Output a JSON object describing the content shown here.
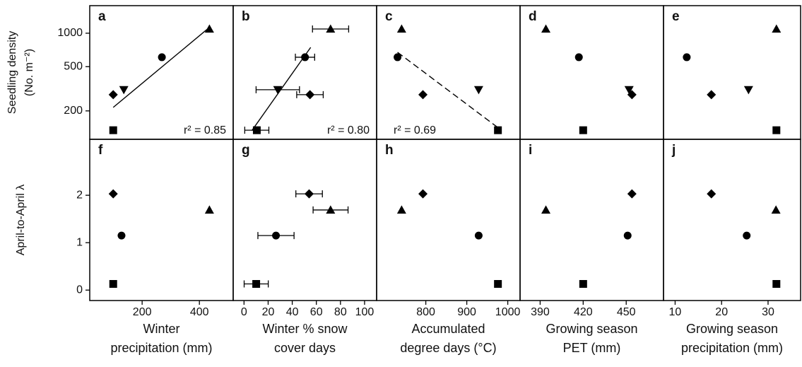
{
  "chart_data": [
    {
      "type": "scatter",
      "panel": "a",
      "yscale": "log",
      "ylim": [
        111,
        1770
      ],
      "yticks": [
        200,
        500,
        1000
      ],
      "ylabel": [
        "Seedling density",
        "(No. m⁻²)"
      ],
      "xlim": [
        17,
        518
      ],
      "points": {
        "marker": [
          "triangle-up",
          "circle",
          "triangle-down",
          "diamond",
          "square"
        ],
        "x": [
          435,
          269,
          136,
          99,
          99
        ],
        "y": [
          1092,
          608,
          310,
          280,
          134
        ]
      },
      "fit": {
        "style": "solid",
        "x": [
          99,
          430
        ],
        "y": [
          215,
          1100
        ]
      },
      "annotation": "r² = 0.85",
      "annotation_corner": "bottom-right"
    },
    {
      "type": "scatter",
      "panel": "b",
      "yscale": "log",
      "ylim": [
        111,
        1770
      ],
      "xlim": [
        -9,
        110
      ],
      "points": {
        "marker": [
          "triangle-up",
          "circle",
          "triangle-down",
          "diamond",
          "square"
        ],
        "x": [
          71.8,
          50.6,
          28,
          54.7,
          10.6
        ],
        "xerr": [
          15,
          8,
          18,
          11,
          10
        ],
        "y": [
          1092,
          608,
          310,
          280,
          134
        ]
      },
      "fit": {
        "style": "solid",
        "x": [
          6.5,
          55.3
        ],
        "y": [
          133,
          746
        ]
      },
      "annotation": "r² = 0.80",
      "annotation_corner": "bottom-right"
    },
    {
      "type": "scatter",
      "panel": "c",
      "yscale": "log",
      "ylim": [
        111,
        1770
      ],
      "xlim": [
        680,
        1030
      ],
      "points": {
        "marker": [
          "triangle-up",
          "circle",
          "triangle-down",
          "diamond",
          "square"
        ],
        "x": [
          741,
          731,
          929,
          793,
          976
        ],
        "y": [
          1092,
          608,
          310,
          280,
          134
        ]
      },
      "fit": {
        "style": "dashed",
        "x": [
          731,
          981
        ],
        "y": [
          674,
          137
        ]
      },
      "annotation": "r² = 0.69",
      "annotation_corner": "bottom-left"
    },
    {
      "type": "scatter",
      "panel": "d",
      "yscale": "log",
      "ylim": [
        111,
        1770
      ],
      "xlim": [
        376,
        476
      ],
      "points": {
        "marker": [
          "triangle-up",
          "circle",
          "triangle-down",
          "diamond",
          "square"
        ],
        "x": [
          394,
          417,
          452,
          454,
          420
        ],
        "y": [
          1092,
          608,
          310,
          280,
          134
        ]
      }
    },
    {
      "type": "scatter",
      "panel": "e",
      "yscale": "log",
      "ylim": [
        111,
        1770
      ],
      "xlim": [
        7.5,
        37
      ],
      "points": {
        "marker": [
          "triangle-up",
          "circle",
          "triangle-down",
          "diamond",
          "square"
        ],
        "x": [
          31.8,
          12.5,
          25.8,
          17.8,
          31.8
        ],
        "y": [
          1092,
          608,
          310,
          280,
          134
        ]
      }
    },
    {
      "type": "scatter",
      "panel": "f",
      "ylim": [
        -0.22,
        3.18
      ],
      "yticks": [
        0,
        1,
        2
      ],
      "ylabel": [
        "April-to-April λ"
      ],
      "xlim": [
        17,
        518
      ],
      "xticks": [
        200,
        400
      ],
      "xlabel": [
        "Winter",
        "precipitation (mm)"
      ],
      "points": {
        "marker": [
          "diamond",
          "triangle-up",
          "circle",
          "square"
        ],
        "x": [
          99,
          435,
          128,
          99
        ],
        "y": [
          2.03,
          1.69,
          1.15,
          0.13
        ]
      }
    },
    {
      "type": "scatter",
      "panel": "g",
      "ylim": [
        -0.22,
        3.18
      ],
      "xlim": [
        -9,
        110
      ],
      "xticks": [
        0,
        20,
        40,
        60,
        80,
        100
      ],
      "xlabel": [
        "Winter % snow",
        "cover days"
      ],
      "points": {
        "marker": [
          "diamond",
          "triangle-up",
          "circle",
          "square"
        ],
        "x": [
          54,
          71.8,
          26.5,
          10.1
        ],
        "xerr": [
          11,
          14.5,
          15,
          10
        ],
        "y": [
          2.03,
          1.69,
          1.15,
          0.13
        ]
      }
    },
    {
      "type": "scatter",
      "panel": "h",
      "ylim": [
        -0.22,
        3.18
      ],
      "xlim": [
        680,
        1030
      ],
      "xticks": [
        800,
        900,
        1000
      ],
      "xlabel": [
        "Accumulated",
        "degree days (°C)"
      ],
      "points": {
        "marker": [
          "diamond",
          "triangle-up",
          "circle",
          "square"
        ],
        "x": [
          793,
          741,
          929,
          976
        ],
        "y": [
          2.03,
          1.69,
          1.15,
          0.13
        ]
      }
    },
    {
      "type": "scatter",
      "panel": "i",
      "ylim": [
        -0.22,
        3.18
      ],
      "xlim": [
        376,
        476
      ],
      "xticks": [
        390,
        420,
        450
      ],
      "xlabel": [
        "Growing season",
        "PET (mm)"
      ],
      "points": {
        "marker": [
          "diamond",
          "triangle-up",
          "circle",
          "square"
        ],
        "x": [
          454,
          394,
          451,
          420
        ],
        "y": [
          2.03,
          1.69,
          1.15,
          0.13
        ]
      }
    },
    {
      "type": "scatter",
      "panel": "j",
      "ylim": [
        -0.22,
        3.18
      ],
      "xlim": [
        7.5,
        37
      ],
      "xticks": [
        10,
        20,
        30
      ],
      "xlabel": [
        "Growing season",
        "precipitation (mm)"
      ],
      "points": {
        "marker": [
          "diamond",
          "triangle-up",
          "circle",
          "square"
        ],
        "x": [
          17.8,
          31.7,
          25.4,
          31.8
        ],
        "y": [
          2.03,
          1.69,
          1.15,
          0.13
        ]
      }
    }
  ]
}
